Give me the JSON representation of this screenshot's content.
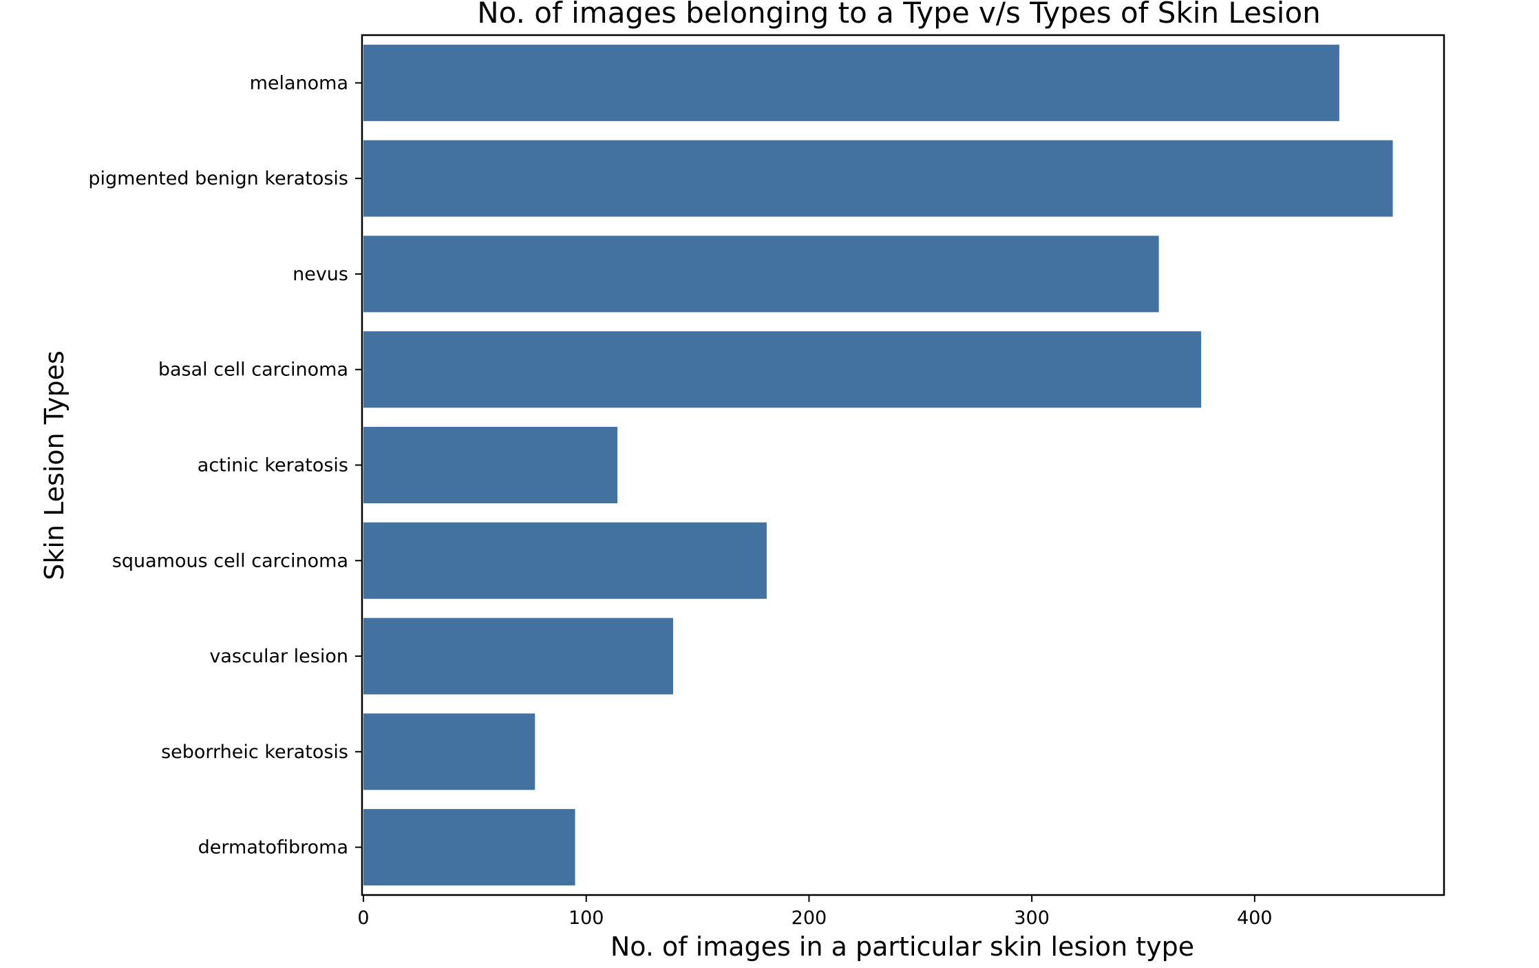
{
  "chart_data": {
    "type": "bar",
    "orientation": "horizontal",
    "title": "No. of images belonging to a Type v/s Types of Skin Lesion",
    "xlabel": "No. of images in a particular skin lesion type",
    "ylabel": "Skin Lesion Types",
    "categories": [
      "melanoma",
      "pigmented benign keratosis",
      "nevus",
      "basal cell carcinoma",
      "actinic keratosis",
      "squamous cell carcinoma",
      "vascular lesion",
      "seborrheic keratosis",
      "dermatofibroma"
    ],
    "values": [
      438,
      462,
      357,
      376,
      114,
      181,
      139,
      77,
      95
    ],
    "xlim": [
      0,
      485
    ],
    "xticks": [
      0,
      100,
      200,
      300,
      400
    ],
    "grid": false,
    "bar_color": "#4472a0"
  }
}
